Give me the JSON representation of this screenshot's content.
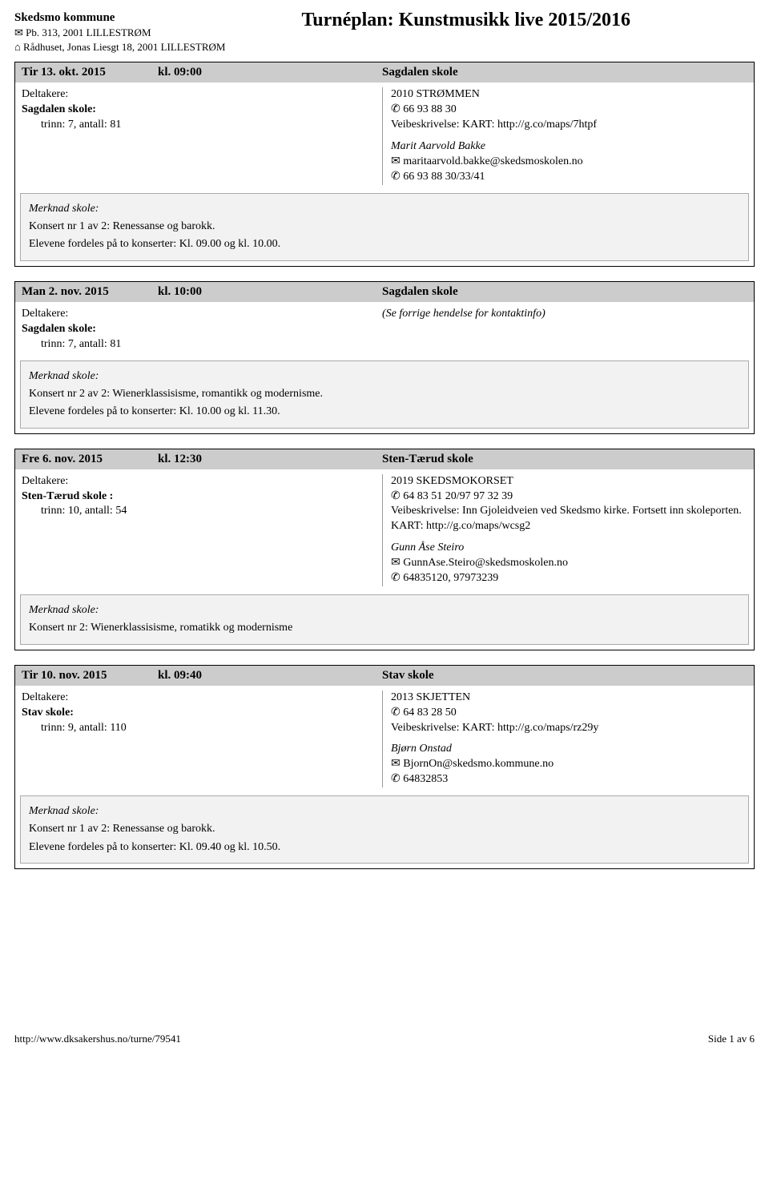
{
  "header": {
    "sender_name": "Skedsmo kommune",
    "sender_line1": "✉ Pb. 313, 2001 LILLESTRØM",
    "sender_line2": "⌂ Rådhuset, Jonas Liesgt 18, 2001 LILLESTRØM",
    "title": "Turnéplan: Kunstmusikk live 2015/2016"
  },
  "events": [
    {
      "date": "Tir 13. okt. 2015",
      "time": "kl. 09:00",
      "venue_header": "Sagdalen skole",
      "deltakere_label": "Deltakere:",
      "school": "Sagdalen skole:",
      "trinn": "trinn: 7, antall: 81",
      "address": "2010 STRØMMEN",
      "phone": "✆ 66 93 88 30",
      "veib": "Veibeskrivelse: KART: http://g.co/maps/7htpf",
      "contact_name": "Marit Aarvold Bakke",
      "contact_email": "✉ maritaarvold.bakke@skedsmoskolen.no",
      "contact_phone": "✆ 66 93 88 30/33/41",
      "note_title": "Merknad skole:",
      "note_line1": "Konsert nr 1 av 2: Renessanse og barokk.",
      "note_line2": "Elevene fordeles på to konserter: Kl. 09.00 og kl. 10.00.",
      "note_below": true,
      "has_contact": true
    },
    {
      "date": "Man 2. nov. 2015",
      "time": "kl. 10:00",
      "venue_header": "Sagdalen skole",
      "deltakere_label": "Deltakere:",
      "school": "Sagdalen skole:",
      "trinn": "trinn: 7, antall: 81",
      "ref_prev": "(Se forrige hendelse for kontaktinfo)",
      "note_title": "Merknad skole:",
      "note_line1": "Konsert nr 2 av 2: Wienerklassisisme, romantikk og modernisme.",
      "note_line2": "Elevene fordeles på to konserter: Kl. 10.00 og kl. 11.30.",
      "note_below": false,
      "has_contact": false
    },
    {
      "date": "Fre 6. nov. 2015",
      "time": "kl. 12:30",
      "venue_header": "Sten-Tærud skole",
      "deltakere_label": "Deltakere:",
      "school": "Sten-Tærud skole :",
      "trinn": "trinn: 10, antall: 54",
      "address": "2019 SKEDSMOKORSET",
      "phone": "✆ 64 83 51 20/97 97 32 39",
      "veib": "Veibeskrivelse: Inn Gjoleidveien ved Skedsmo kirke. Fortsett inn skoleporten. KART: http://g.co/maps/wcsg2",
      "contact_name": "Gunn Åse Steiro",
      "contact_email": "✉ GunnAse.Steiro@skedsmoskolen.no",
      "contact_phone": "✆ 64835120, 97973239",
      "note_title": "Merknad skole:",
      "note_line1": "Konsert nr 2: Wienerklassisisme, romatikk og modernisme",
      "note_line2": "",
      "note_below": true,
      "has_contact": true
    },
    {
      "date": "Tir 10. nov. 2015",
      "time": "kl. 09:40",
      "venue_header": "Stav skole",
      "deltakere_label": "Deltakere:",
      "school": "Stav skole:",
      "trinn": "trinn: 9, antall: 110",
      "address": "2013 SKJETTEN",
      "phone": "✆ 64 83 28 50",
      "veib": "Veibeskrivelse: KART: http://g.co/maps/rz29y",
      "contact_name": "Bjørn Onstad",
      "contact_email": "✉ BjornOn@skedsmo.kommune.no",
      "contact_phone": "✆ 64832853",
      "note_title": "Merknad skole:",
      "note_line1": "Konsert nr 1 av 2: Renessanse og barokk.",
      "note_line2": "Elevene fordeles på to konserter: Kl. 09.40 og kl. 10.50.",
      "note_below": true,
      "has_contact": true
    }
  ],
  "footer": {
    "url": "http://www.dksakershus.no/turne/79541",
    "page": "Side 1 av 6"
  }
}
